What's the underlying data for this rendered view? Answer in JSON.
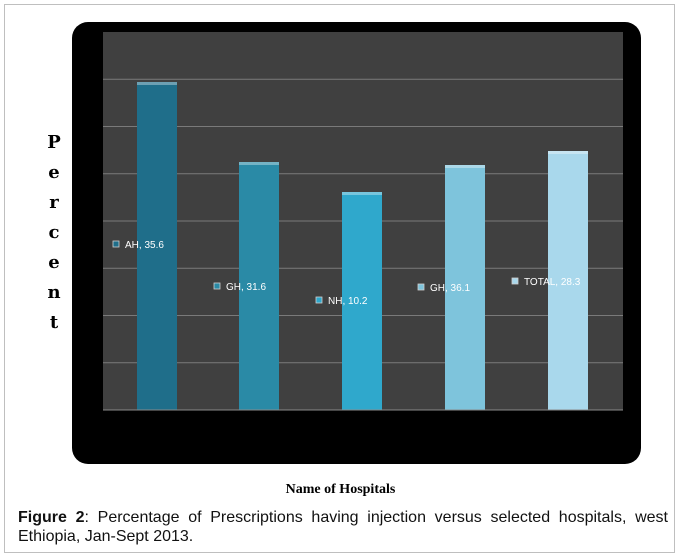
{
  "chart_data": {
    "type": "bar",
    "categories": [
      "AH",
      "GH",
      "NH",
      "GH",
      "TOTAL"
    ],
    "values": [
      35.6,
      31.6,
      10.2,
      36.1,
      28.3
    ],
    "data_labels": [
      "AH, 35.6",
      "GH, 31.6",
      "NH, 10.2",
      "GH, 36.1",
      "TOTAL, 28.3"
    ],
    "ylabel": "Percent",
    "ylabel_letters": [
      "P",
      "e",
      "r",
      "c",
      "e",
      "n",
      "t"
    ],
    "xlabel": "Name of Hospitals",
    "grid": true,
    "colors": {
      "chart_background": "#000000",
      "plot_background": "#404040",
      "gridline": "#7a7a7a",
      "bars": [
        "#1f6e8a",
        "#2a8aa6",
        "#2fa8cc",
        "#7ec4dc",
        "#a9d8ec"
      ],
      "label_text": "#ffffff"
    }
  },
  "caption": {
    "figure_label": "Figure 2",
    "text": ": Percentage of Prescriptions having injection versus selected hospitals, west Ethiopia, Jan-Sept 2013."
  }
}
